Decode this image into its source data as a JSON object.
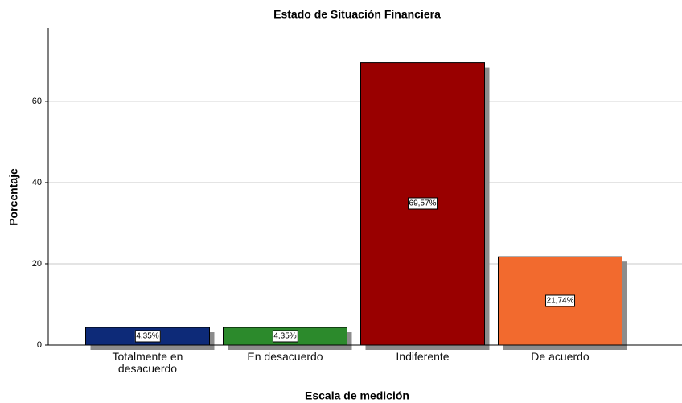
{
  "chart_data": {
    "type": "bar",
    "title": "Estado de Situación Financiera",
    "x_label": "Escala de medición",
    "y_label": "Porcentaje",
    "categories": [
      "Totalmente en desacuerdo",
      "En desacuerdo",
      "Indiferente",
      "De acuerdo"
    ],
    "values": [
      4.35,
      4.35,
      69.57,
      21.74
    ],
    "value_labels": [
      "4,35%",
      "4,35%",
      "69,57%",
      "21,74%"
    ],
    "colors": [
      "#0d2a78",
      "#2c8a2c",
      "#990000",
      "#f26a2e"
    ],
    "ylim": [
      0,
      78
    ],
    "yticks": [
      0,
      20,
      40,
      60
    ],
    "grid": true
  }
}
